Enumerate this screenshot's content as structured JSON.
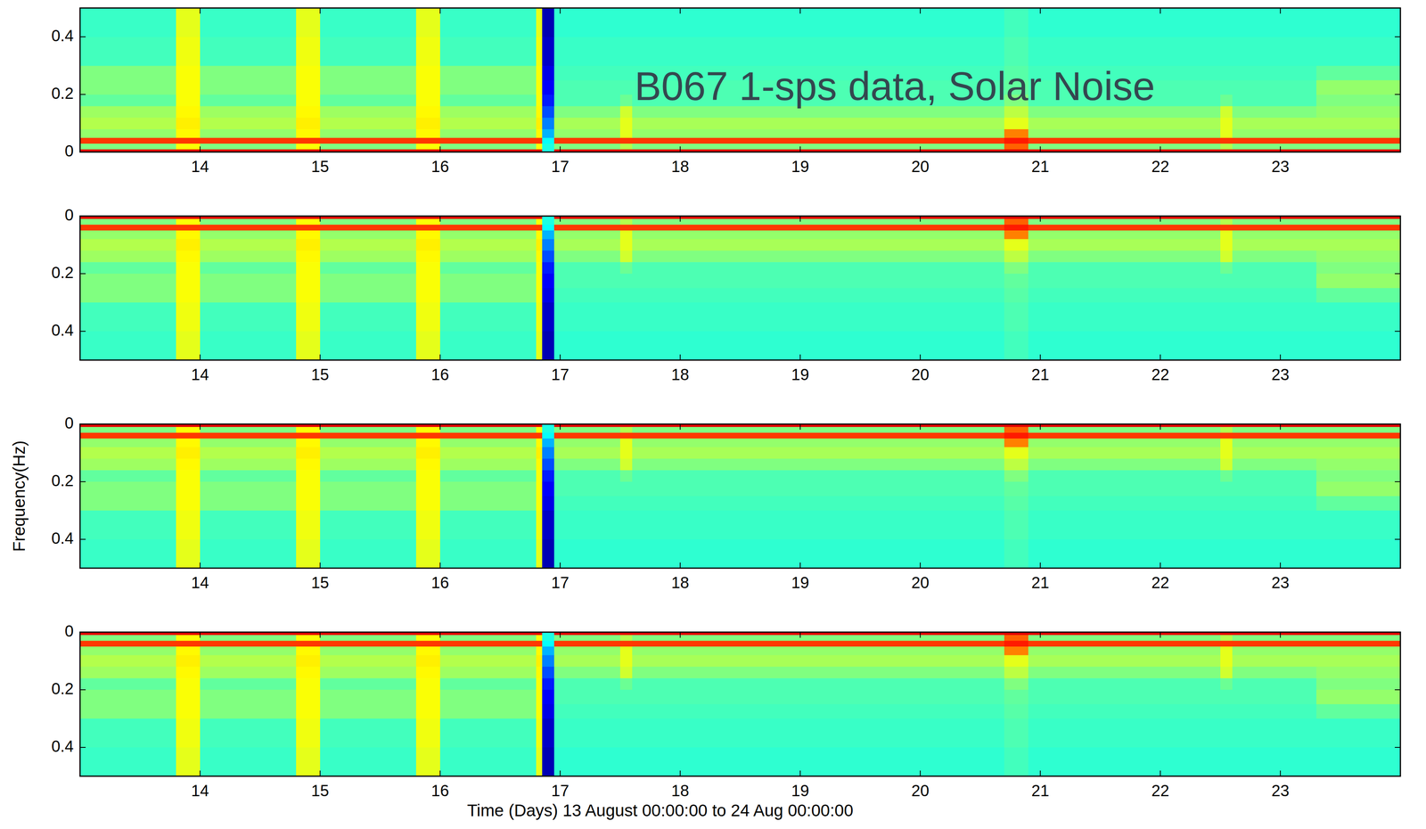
{
  "chart_data": {
    "type": "heatmap",
    "title": "B067 1-sps data, Solar Noise",
    "x_label": "Time (Days) 13 August 00:00:00 to 24 Aug 00:00:00",
    "y_label": "Frequency(Hz)",
    "color": "jet",
    "zlim": [
      0,
      1
    ],
    "xlim": [
      13,
      24
    ],
    "xticks": [
      14,
      15,
      16,
      17,
      18,
      19,
      20,
      21,
      22,
      23
    ],
    "x_edges": [
      13,
      13.8,
      14.0,
      14.8,
      15.0,
      15.8,
      16.0,
      16.8,
      16.85,
      16.95,
      17.5,
      17.6,
      20.7,
      20.9,
      22.5,
      22.6,
      23.3,
      24
    ],
    "y_edges": [
      0,
      0.01,
      0.03,
      0.05,
      0.08,
      0.12,
      0.16,
      0.2,
      0.25,
      0.3,
      0.4,
      0.5
    ],
    "cells": [
      [
        0.9,
        0.9,
        0.9,
        0.9,
        0.9,
        0.9,
        0.9,
        0.9,
        0.4,
        0.9,
        0.9,
        0.9,
        0.9,
        0.9,
        0.9,
        0.9,
        0.9
      ],
      [
        0.5,
        0.62,
        0.5,
        0.62,
        0.5,
        0.62,
        0.5,
        0.62,
        0.4,
        0.5,
        0.55,
        0.5,
        0.78,
        0.5,
        0.55,
        0.5,
        0.5
      ],
      [
        0.82,
        0.82,
        0.82,
        0.82,
        0.82,
        0.82,
        0.82,
        0.82,
        0.38,
        0.82,
        0.82,
        0.82,
        0.85,
        0.82,
        0.82,
        0.82,
        0.82
      ],
      [
        0.52,
        0.63,
        0.52,
        0.63,
        0.52,
        0.63,
        0.52,
        0.63,
        0.3,
        0.52,
        0.6,
        0.52,
        0.75,
        0.52,
        0.6,
        0.52,
        0.52
      ],
      [
        0.55,
        0.64,
        0.55,
        0.64,
        0.55,
        0.64,
        0.55,
        0.64,
        0.25,
        0.54,
        0.6,
        0.54,
        0.6,
        0.54,
        0.6,
        0.54,
        0.54
      ],
      [
        0.53,
        0.63,
        0.53,
        0.63,
        0.53,
        0.63,
        0.53,
        0.63,
        0.2,
        0.5,
        0.58,
        0.5,
        0.56,
        0.5,
        0.58,
        0.5,
        0.52
      ],
      [
        0.47,
        0.62,
        0.47,
        0.62,
        0.47,
        0.62,
        0.47,
        0.62,
        0.15,
        0.45,
        0.48,
        0.45,
        0.5,
        0.45,
        0.48,
        0.45,
        0.5
      ],
      [
        0.5,
        0.62,
        0.5,
        0.62,
        0.5,
        0.62,
        0.5,
        0.62,
        0.12,
        0.45,
        0.45,
        0.45,
        0.47,
        0.45,
        0.45,
        0.45,
        0.52
      ],
      [
        0.5,
        0.62,
        0.5,
        0.62,
        0.5,
        0.62,
        0.5,
        0.62,
        0.1,
        0.44,
        0.44,
        0.44,
        0.46,
        0.44,
        0.44,
        0.44,
        0.47
      ],
      [
        0.44,
        0.61,
        0.44,
        0.61,
        0.44,
        0.61,
        0.44,
        0.61,
        0.07,
        0.43,
        0.43,
        0.43,
        0.45,
        0.43,
        0.43,
        0.43,
        0.43
      ],
      [
        0.43,
        0.6,
        0.43,
        0.6,
        0.43,
        0.6,
        0.43,
        0.6,
        0.05,
        0.42,
        0.42,
        0.42,
        0.44,
        0.42,
        0.42,
        0.42,
        0.42
      ]
    ],
    "panels": [
      {
        "ylim": [
          0,
          0.5
        ],
        "yticks": [
          0,
          0.2,
          0.4
        ]
      },
      {
        "ylim": [
          0.5,
          0
        ],
        "yticks": [
          0,
          0.2,
          0.4
        ]
      },
      {
        "ylim": [
          0.5,
          0
        ],
        "yticks": [
          0,
          0.2,
          0.4
        ]
      },
      {
        "ylim": [
          0.5,
          0
        ],
        "yticks": [
          0,
          0.2,
          0.4
        ]
      }
    ]
  }
}
